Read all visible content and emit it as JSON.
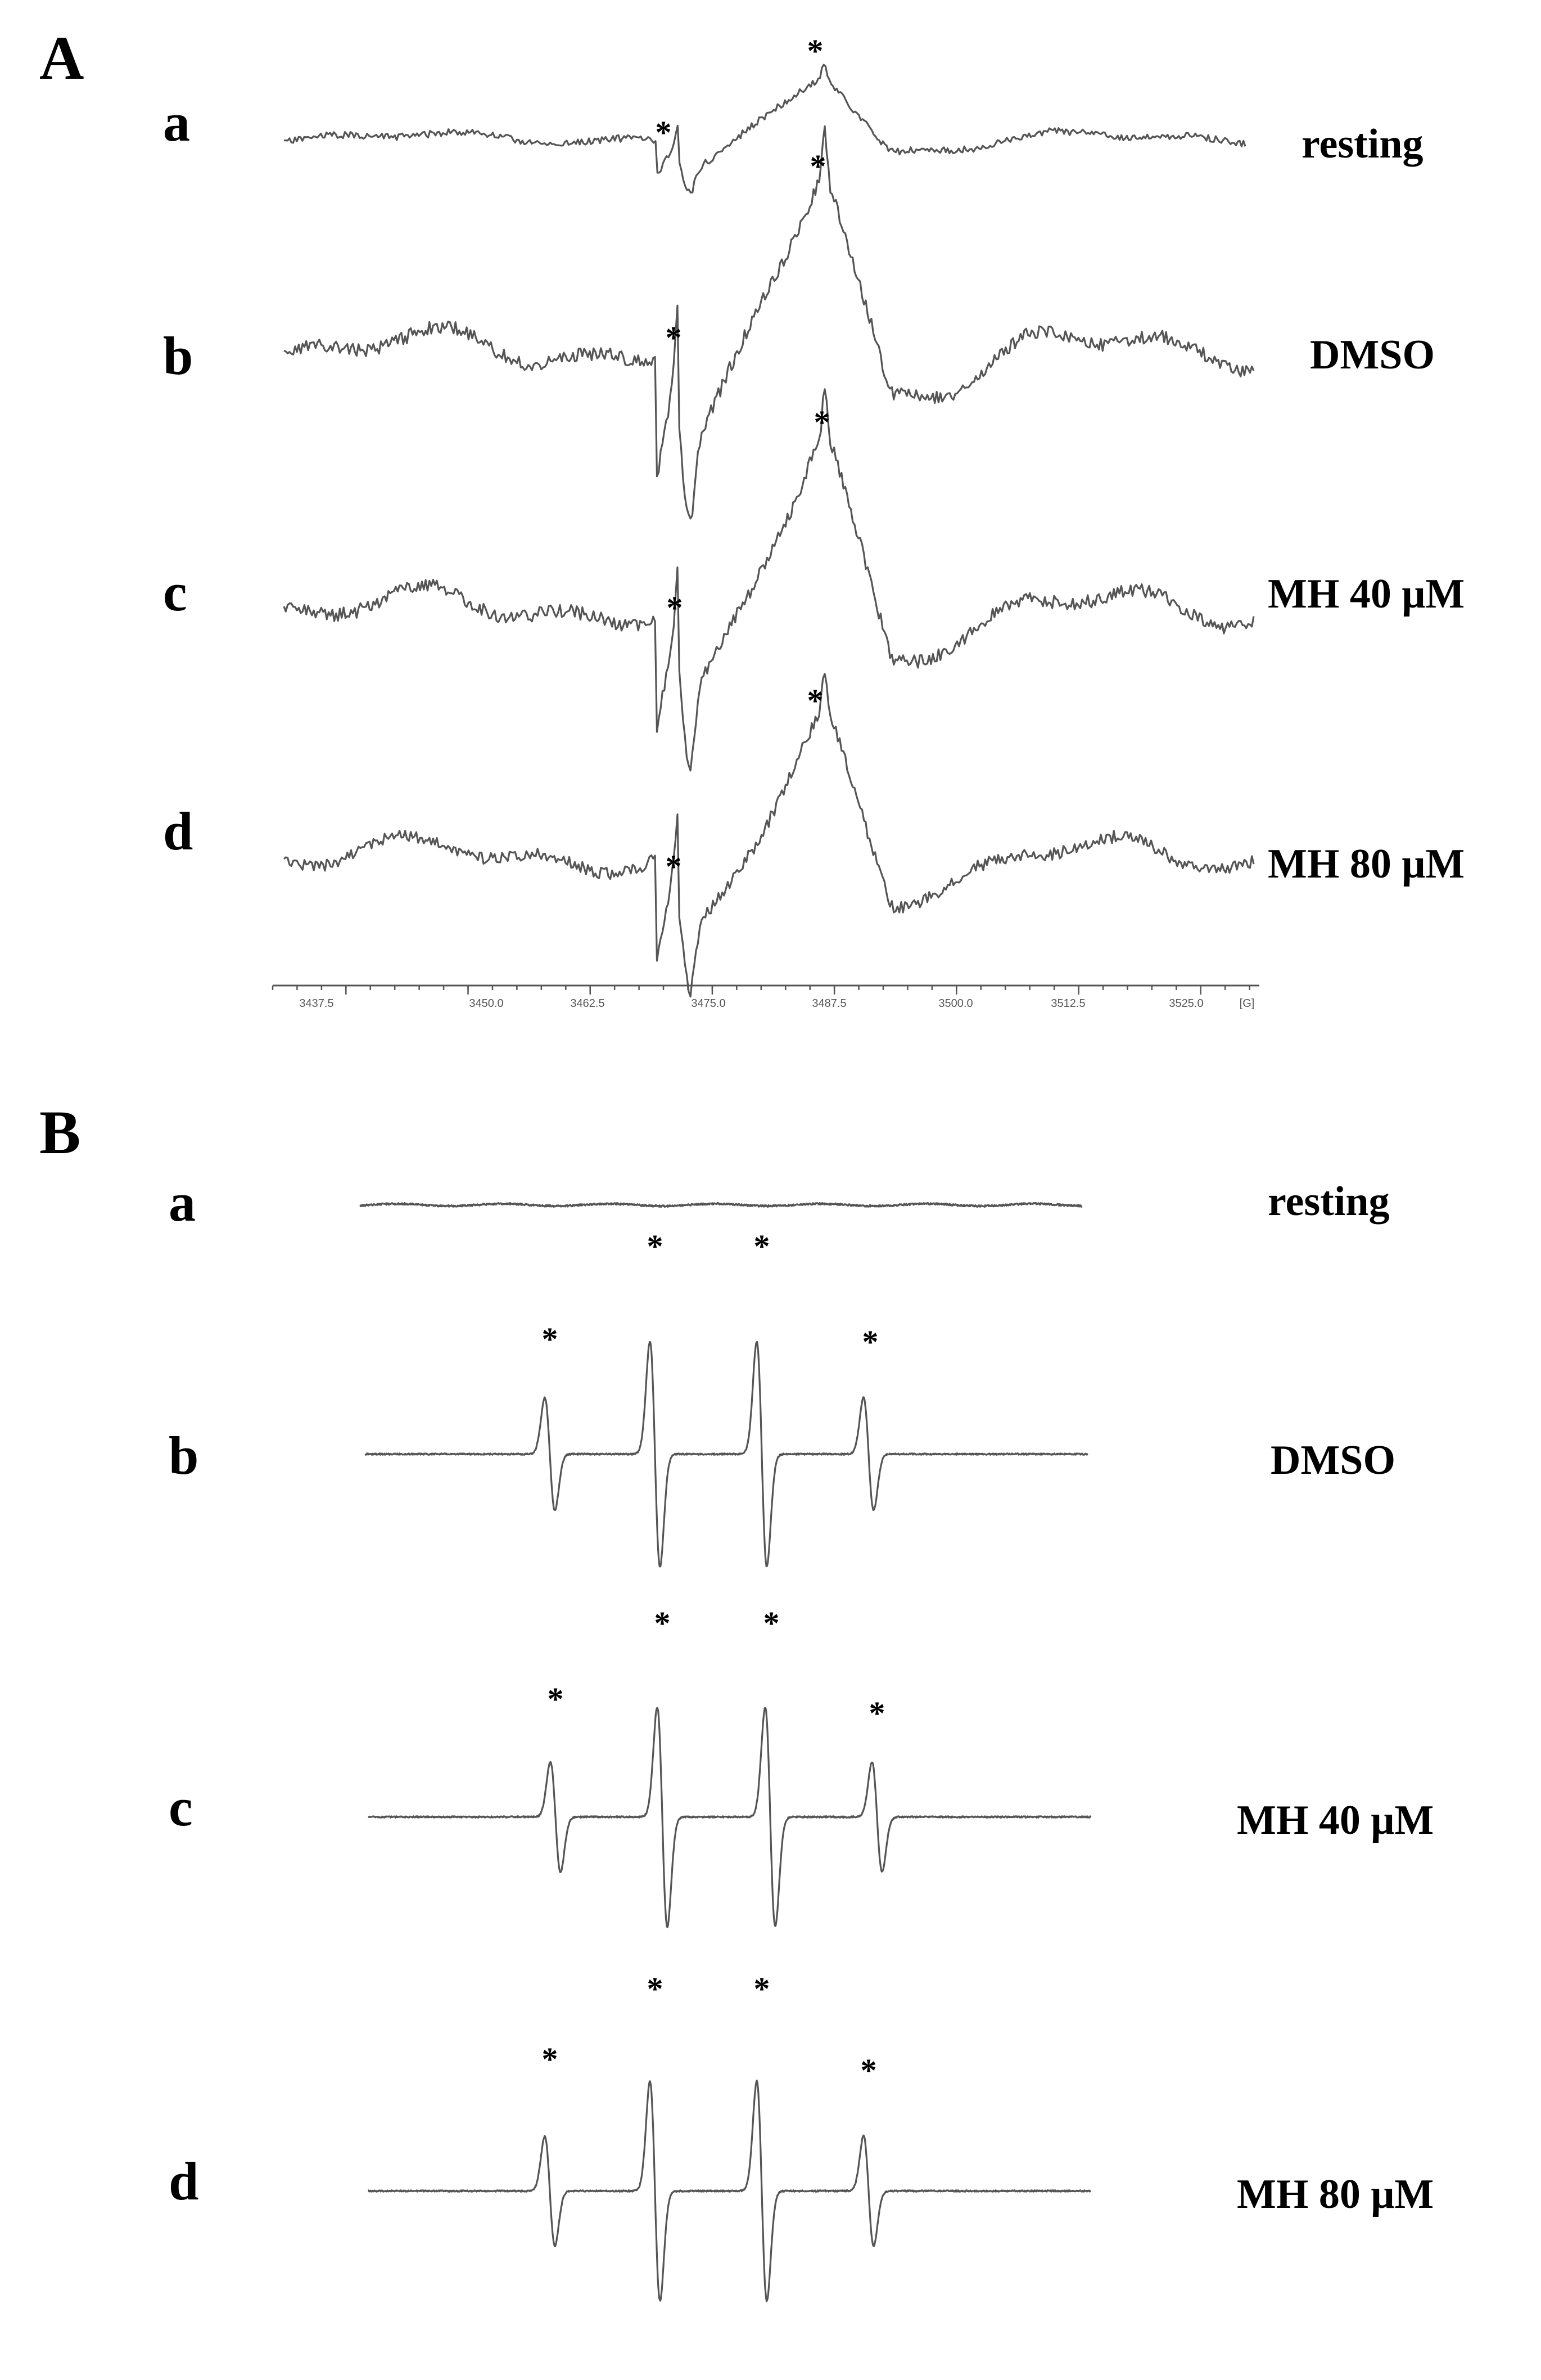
{
  "panel_A": {
    "letter": "A",
    "rows": [
      {
        "letter": "a",
        "label": "resting"
      },
      {
        "letter": "b",
        "label": "DMSO"
      },
      {
        "letter": "c",
        "label": "MH 40 μM"
      },
      {
        "letter": "d",
        "label": "MH 80 μM"
      }
    ]
  },
  "panel_B": {
    "letter": "B",
    "rows": [
      {
        "letter": "a",
        "label": "resting"
      },
      {
        "letter": "b",
        "label": "DMSO"
      },
      {
        "letter": "c",
        "label": "MH 40 μM"
      },
      {
        "letter": "d",
        "label": "MH 80 μM"
      }
    ]
  },
  "marker_symbol": "*",
  "colors": {
    "trace": "#555555",
    "text": "#000000",
    "background": "#ffffff"
  },
  "chart_data": [
    {
      "type": "line",
      "panel": "A",
      "description_free": true,
      "x_axis": {
        "range": [
          3430,
          3531
        ],
        "ticks": [
          3437.5,
          3450.0,
          3462.5,
          3475.0,
          3487.5,
          3500.0,
          3512.5,
          3525.0
        ],
        "tick_labels": [
          "3437.5",
          "3450.0",
          "3462.5",
          "3475.0",
          "3487.5",
          "3500.0",
          "3512.5",
          "3525.0"
        ],
        "unit": "[G]"
      },
      "marker_positions": [
        3471.5,
        3486.5
      ],
      "series": [
        {
          "row": "a",
          "label": "resting",
          "peak_amplitude": 0.35,
          "dip_amplitude": 0.2
        },
        {
          "row": "b",
          "label": "DMSO",
          "peak_amplitude": 1.0,
          "dip_amplitude": 0.65
        },
        {
          "row": "c",
          "label": "MH 40 μM",
          "peak_amplitude": 0.97,
          "dip_amplitude": 0.62
        },
        {
          "row": "d",
          "label": "MH 80 μM",
          "peak_amplitude": 0.78,
          "dip_amplitude": 0.55
        }
      ]
    },
    {
      "type": "line",
      "panel": "B",
      "lines_per_spectrum": 4,
      "line_intensity_ratio": [
        1,
        2,
        2,
        1
      ],
      "marker_positions": [
        0.25,
        0.4,
        0.55,
        0.7
      ],
      "series": [
        {
          "row": "a",
          "label": "resting",
          "amplitude": 0.02
        },
        {
          "row": "b",
          "label": "DMSO",
          "amplitude": 1.0
        },
        {
          "row": "c",
          "label": "MH 40 μM",
          "amplitude": 1.0
        },
        {
          "row": "d",
          "label": "MH 80 μM",
          "amplitude": 1.0
        }
      ]
    }
  ]
}
